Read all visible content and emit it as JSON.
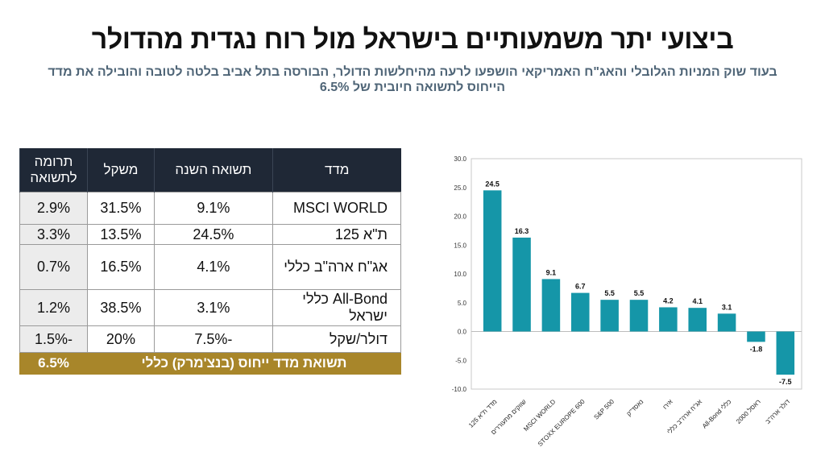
{
  "header": {
    "title": "ביצועי יתר משמעותיים בישראל מול רוח נגדית מהדולר",
    "subtitle_line1": "בעוד שוק המניות הגלובלי והאג\"ח האמריקאי הושפעו לרעה מהיחלשות הדולר, הבורסה בתל אביב בלטה לטובה והובילה את מדד",
    "subtitle_line2": "הייחוס לתשואה חיובית של 6.5%"
  },
  "table": {
    "headers": [
      "מדד",
      "תשואה השנה",
      "משקל",
      "תרומה לתשואה"
    ],
    "rows": [
      {
        "index": "MSCI WORLD",
        "ret": "9.1%",
        "weight": "31.5%",
        "contrib": "2.9%"
      },
      {
        "index": "ת\"א 125",
        "ret": "24.5%",
        "weight": "13.5%",
        "contrib": "3.3%"
      },
      {
        "index": "אג\"ח ארה\"ב כללי",
        "ret": "4.1%",
        "weight": "16.5%",
        "contrib": "0.7%"
      },
      {
        "index": "All-Bond כללי ישראל",
        "ret": "3.1%",
        "weight": "38.5%",
        "contrib": "1.2%"
      },
      {
        "index": "דולר/שקל",
        "ret": "-7.5%",
        "weight": "20%",
        "contrib": "-1.5%"
      }
    ],
    "total_label": "תשואת מדד ייחוס (בנצ'מרק) כללי",
    "total_value": "6.5%",
    "colors": {
      "header_bg": "#1f2836",
      "total_bg": "#a8862a"
    }
  },
  "chart_data": {
    "type": "bar",
    "categories": [
      "מדד ת\"א 125",
      "שווקים מתעוררים",
      "MSCI WORLD",
      "STOXX EUROPE 600",
      "S&P 500",
      "נאסד\"ק",
      "אירו",
      "אג\"ח ארה\"ב כללי",
      "All-Bond כללי",
      "ראסל 2000",
      "דולר ארה\"ב"
    ],
    "values": [
      24.5,
      16.3,
      9.1,
      6.7,
      5.5,
      5.5,
      4.2,
      4.1,
      3.1,
      -1.8,
      -7.5
    ],
    "data_labels": [
      "24.5",
      "16.3",
      "9.1",
      "6.7",
      "5.5",
      "5.5",
      "4.2",
      "4.1",
      "3.1",
      "-1.8",
      "-7.5"
    ],
    "ylim": [
      -10,
      30
    ],
    "yticks": [
      "30.0",
      "25.0",
      "20.0",
      "15.0",
      "10.0",
      "5.0",
      "0.0",
      "-5.0",
      "-10.0"
    ],
    "ytick_values": [
      30,
      25,
      20,
      15,
      10,
      5,
      0,
      -5,
      -10
    ],
    "bar_color": "#1596a8",
    "grid": false,
    "title": "",
    "xlabel": "",
    "ylabel": ""
  }
}
